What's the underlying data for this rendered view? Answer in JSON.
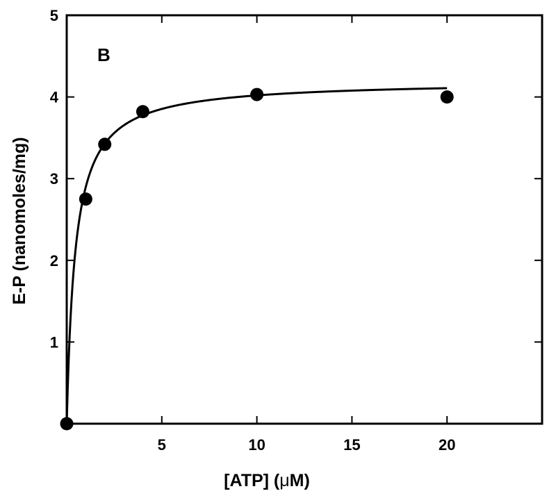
{
  "chart_data": {
    "type": "scatter",
    "panel_label": "B",
    "xlabel_prefix": "[ATP] (",
    "xlabel_mu": "μ",
    "xlabel_suffix": "M)",
    "ylabel": "E-P (nanomoles/mg)",
    "xlim": [
      0,
      25
    ],
    "ylim": [
      0,
      5
    ],
    "x_ticks": [
      5,
      10,
      15,
      20
    ],
    "y_ticks": [
      1,
      2,
      3,
      4,
      5
    ],
    "grid": false,
    "series": [
      {
        "points": [
          {
            "x": 0,
            "y": 0
          },
          {
            "x": 1,
            "y": 2.75
          },
          {
            "x": 2,
            "y": 3.42
          },
          {
            "x": 4,
            "y": 3.82
          },
          {
            "x": 10,
            "y": 4.03
          },
          {
            "x": 20,
            "y": 4.0
          }
        ],
        "color": "#000000"
      }
    ],
    "fit_curve": {
      "model": "hyperbolic",
      "vmax": 4.2,
      "km": 0.45,
      "x_range": [
        0,
        20
      ]
    }
  }
}
